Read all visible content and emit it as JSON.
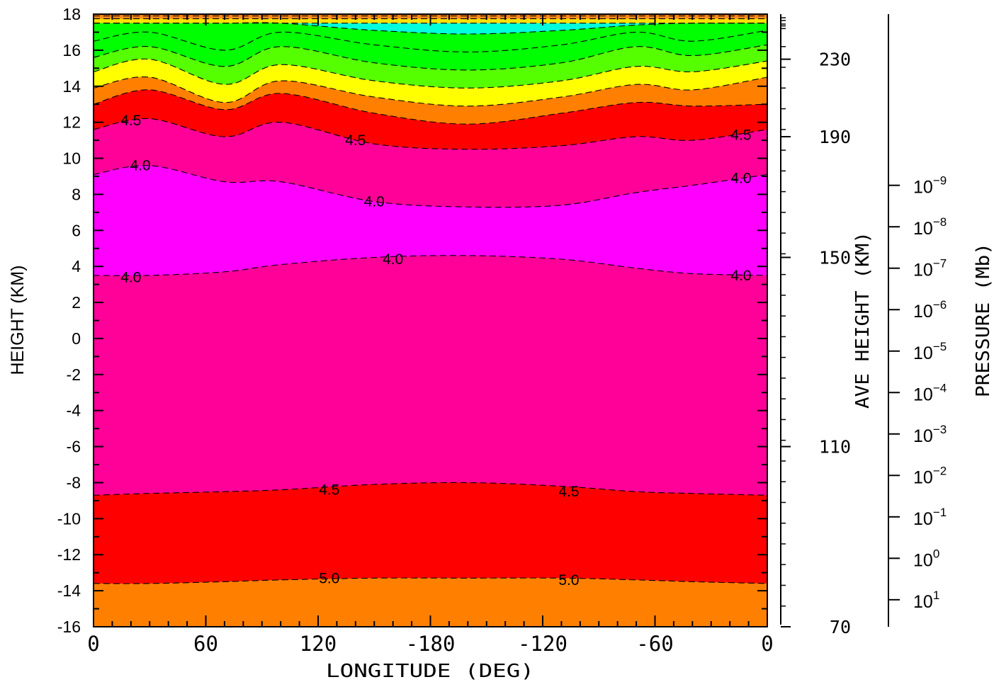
{
  "chart_data": {
    "type": "filled-contour",
    "xlabel": "LONGITUDE (DEG)",
    "ylabel": "HEIGHT (KM)",
    "x_ticks": [
      "0",
      "60",
      "120",
      "-180",
      "-120",
      "-60",
      "0"
    ],
    "xlim_deg_east": [
      0,
      360
    ],
    "ylim": [
      -16,
      18
    ],
    "y_ticks": [
      "18",
      "16",
      "14",
      "12",
      "10",
      "8",
      "6",
      "4",
      "2",
      "0",
      "-2",
      "-4",
      "-6",
      "-8",
      "-10",
      "-12",
      "-14",
      "-16"
    ],
    "right_axis_height": {
      "label": "AVE HEIGHT (KM)",
      "ticks": [
        "230",
        "190",
        "150",
        "110",
        "70"
      ],
      "tick_heights_km": [
        15.5,
        11.2,
        4.5,
        -6.0,
        -16.0
      ]
    },
    "right_axis_pressure": {
      "label": "PRESSURE (Mb)",
      "ticks": [
        {
          "base": "10",
          "exp": "−9",
          "height_km": 8.5
        },
        {
          "base": "10",
          "exp": "−8",
          "height_km": 6.2
        },
        {
          "base": "10",
          "exp": "−7",
          "height_km": 3.9
        },
        {
          "base": "10",
          "exp": "−6",
          "height_km": 1.6
        },
        {
          "base": "10",
          "exp": "−5",
          "height_km": -0.7
        },
        {
          "base": "10",
          "exp": "−4",
          "height_km": -3.0
        },
        {
          "base": "10",
          "exp": "−3",
          "height_km": -5.3
        },
        {
          "base": "10",
          "exp": "−2",
          "height_km": -7.6
        },
        {
          "base": "10",
          "exp": "−1",
          "height_km": -9.9
        },
        {
          "base": "10",
          "exp": "0",
          "height_km": -12.2
        },
        {
          "base": "10",
          "exp": "1",
          "height_km": -14.5
        }
      ]
    },
    "contour_x_deg_east": [
      0,
      30,
      70,
      100,
      150,
      200,
      250,
      290,
      320,
      360
    ],
    "contours": [
      {
        "heights": [
          17.9,
          17.9,
          17.9,
          17.9,
          17.9,
          17.9,
          17.9,
          17.9,
          17.9,
          17.9
        ],
        "color": "#ff8c1e"
      },
      {
        "heights": [
          17.75,
          17.75,
          17.75,
          17.75,
          17.75,
          17.75,
          17.75,
          17.75,
          17.75,
          17.75
        ],
        "color": "#ffe000"
      },
      {
        "heights": [
          17.5,
          17.5,
          17.5,
          17.5,
          17.5,
          17.5,
          17.5,
          17.5,
          17.5,
          17.5
        ],
        "color": "#00ffdc"
      },
      {
        "heights": [
          17.5,
          17.5,
          17.5,
          17.5,
          17.1,
          16.9,
          17.1,
          17.4,
          17.5,
          17.5
        ],
        "color": "#00ff00"
      },
      {
        "heights": [
          16.5,
          17.0,
          16.0,
          17.0,
          16.3,
          15.9,
          16.3,
          17.0,
          16.5,
          17.1
        ],
        "color": "#00ff00"
      },
      {
        "heights": [
          15.6,
          16.2,
          15.1,
          16.2,
          15.3,
          14.9,
          15.3,
          16.2,
          15.7,
          16.3
        ],
        "color": "#56ff00"
      },
      {
        "heights": [
          14.8,
          15.5,
          14.1,
          15.2,
          14.3,
          13.9,
          14.3,
          15.1,
          14.8,
          15.4
        ],
        "color": "#ffff00"
      },
      {
        "heights": [
          13.9,
          14.5,
          13.1,
          14.3,
          13.4,
          12.9,
          13.4,
          14.1,
          13.8,
          14.5
        ],
        "color": "#ff8000"
      },
      {
        "heights": [
          13.0,
          13.8,
          12.7,
          13.6,
          12.5,
          11.9,
          12.5,
          13.1,
          12.9,
          13.0
        ],
        "color": "#ff0000"
      },
      {
        "heights": [
          11.6,
          12.2,
          11.2,
          12.0,
          10.8,
          10.5,
          10.7,
          11.2,
          11.0,
          11.6
        ],
        "color": "#ff0099",
        "label": "4.5",
        "label_at": [
          [
            20,
            12.1
          ],
          [
            140,
            11.0
          ],
          [
            346,
            11.3
          ]
        ]
      },
      {
        "heights": [
          9.1,
          9.6,
          8.7,
          8.7,
          7.6,
          7.3,
          7.4,
          8.1,
          8.5,
          9.1
        ],
        "color": "#ff00ff",
        "label": "4.0",
        "label_at": [
          [
            25,
            9.6
          ],
          [
            150,
            7.6
          ],
          [
            346,
            8.9
          ]
        ]
      },
      {
        "heights": [
          3.5,
          3.5,
          3.7,
          4.1,
          4.5,
          4.6,
          4.4,
          3.9,
          3.6,
          3.5
        ],
        "color": "#ff0099",
        "label": "4.0",
        "label_at": [
          [
            20,
            3.4
          ],
          [
            160,
            4.4
          ],
          [
            346,
            3.5
          ]
        ]
      },
      {
        "heights": [
          -8.7,
          -8.6,
          -8.5,
          -8.4,
          -8.1,
          -8.0,
          -8.2,
          -8.5,
          -8.6,
          -8.7
        ],
        "color": "#ff0000",
        "label": "4.5",
        "label_at": [
          [
            126,
            -8.4
          ],
          [
            254,
            -8.5
          ]
        ]
      },
      {
        "heights": [
          -13.6,
          -13.6,
          -13.5,
          -13.4,
          -13.3,
          -13.3,
          -13.3,
          -13.4,
          -13.5,
          -13.6
        ],
        "color": "#ff8000",
        "label": "5.0",
        "label_at": [
          [
            126,
            -13.3
          ],
          [
            254,
            -13.4
          ]
        ]
      }
    ]
  }
}
